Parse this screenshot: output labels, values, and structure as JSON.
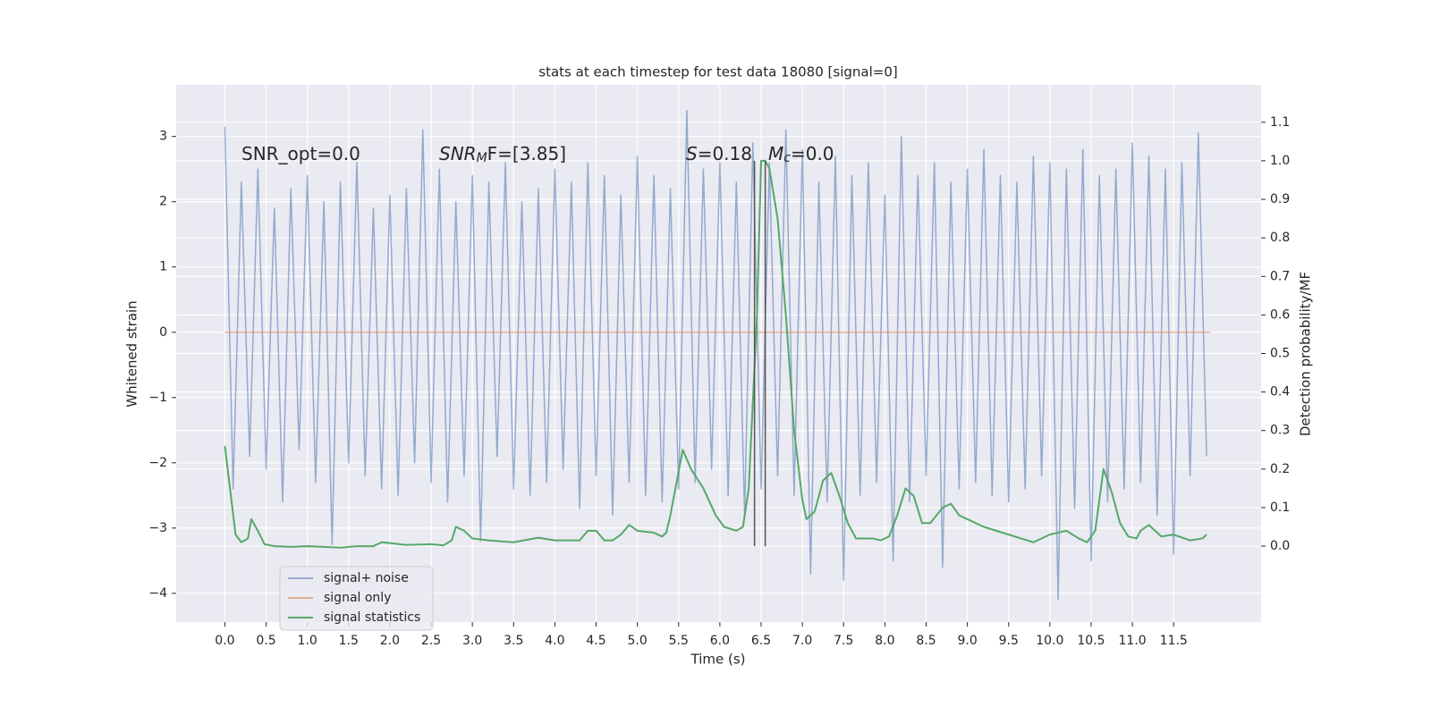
{
  "chart_data": {
    "type": "line",
    "title": "stats at each timestep for test data 18080 [signal=0]",
    "xlabel": "Time (s)",
    "ylabel": "Whitened strain",
    "y2label": "Detection probability/MF",
    "xlim": [
      -0.59,
      12.56
    ],
    "ylim": [
      -4.44,
      3.79
    ],
    "y2lim": [
      -0.197,
      1.197
    ],
    "grid": true,
    "legend_loc": "lower left",
    "xticks": [
      {
        "value": 0,
        "label": "0.0"
      },
      0.5,
      {
        "value": 1,
        "label": "1.0"
      },
      1.5,
      {
        "value": 2,
        "label": "2.0"
      },
      2.5,
      {
        "value": 3,
        "label": "3.0"
      },
      3.5,
      {
        "value": 4,
        "label": "4.0"
      },
      4.5,
      {
        "value": 5,
        "label": "5.0"
      },
      5.5,
      {
        "value": 6,
        "label": "6.0"
      },
      6.5,
      {
        "value": 7,
        "label": "7.0"
      },
      7.5,
      {
        "value": 8,
        "label": "8.0"
      },
      8.5,
      {
        "value": 9,
        "label": "9.0"
      },
      9.5,
      {
        "value": 10,
        "label": "10.0"
      },
      10.5,
      {
        "value": 11,
        "label": "11.0"
      },
      11.5
    ],
    "yticks": [
      {
        "value": -4,
        "label": "−4"
      },
      {
        "value": -3,
        "label": "−3"
      },
      {
        "value": -2,
        "label": "−2"
      },
      {
        "value": -1,
        "label": "−1"
      },
      0,
      1,
      2,
      3
    ],
    "y2ticks": [
      {
        "value": 0,
        "label": "0.0"
      },
      0.1,
      0.2,
      0.3,
      0.4,
      0.5,
      0.6,
      0.7,
      0.8,
      0.9,
      {
        "value": 1,
        "label": "1.0"
      },
      1.1
    ],
    "series": [
      {
        "name": "signal+ noise",
        "color": "#4c72b0",
        "alpha": 0.55,
        "x": [
          0,
          0.1,
          0.2,
          0.3,
          0.4,
          0.5,
          0.6,
          0.7,
          0.8,
          0.9,
          1,
          1.1,
          1.2,
          1.3,
          1.4,
          1.5,
          1.6,
          1.7,
          1.8,
          1.9,
          2,
          2.1,
          2.2,
          2.3,
          2.4,
          2.5,
          2.6,
          2.7,
          2.8,
          2.9,
          3,
          3.1,
          3.2,
          3.3,
          3.4,
          3.5,
          3.6,
          3.7,
          3.8,
          3.9,
          4,
          4.1,
          4.2,
          4.3,
          4.4,
          4.5,
          4.6,
          4.7,
          4.8,
          4.9,
          5,
          5.1,
          5.2,
          5.3,
          5.4,
          5.5,
          5.6,
          5.7,
          5.8,
          5.9,
          6,
          6.1,
          6.2,
          6.3,
          6.4,
          6.5,
          6.6,
          6.7,
          6.8,
          6.9,
          7,
          7.1,
          7.2,
          7.3,
          7.4,
          7.5,
          7.6,
          7.7,
          7.8,
          7.9,
          8,
          8.1,
          8.2,
          8.3,
          8.4,
          8.5,
          8.6,
          8.7,
          8.8,
          8.9,
          9,
          9.1,
          9.2,
          9.3,
          9.4,
          9.5,
          9.6,
          9.7,
          9.8,
          9.9,
          10,
          10.1,
          10.2,
          10.3,
          10.4,
          10.5,
          10.6,
          10.7,
          10.8,
          10.9,
          11,
          11.1,
          11.2,
          11.3,
          11.4,
          11.5,
          11.6,
          11.7,
          11.8,
          11.9
        ],
        "values": [
          3.15,
          -2.4,
          2.3,
          -1.9,
          2.5,
          -2.1,
          1.9,
          -2.6,
          2.2,
          -1.8,
          2.4,
          -2.3,
          2.0,
          -3.25,
          2.3,
          -2.0,
          2.6,
          -2.2,
          1.9,
          -2.4,
          2.1,
          -2.5,
          2.2,
          -2.0,
          3.1,
          -2.3,
          2.5,
          -2.6,
          2.0,
          -2.2,
          2.4,
          -3.2,
          2.3,
          -1.9,
          2.6,
          -2.4,
          2.0,
          -2.5,
          2.2,
          -2.3,
          2.5,
          -2.1,
          2.3,
          -2.7,
          2.6,
          -2.2,
          2.4,
          -2.8,
          2.1,
          -2.3,
          2.7,
          -2.5,
          2.4,
          -2.6,
          2.2,
          -2.4,
          3.4,
          -2.3,
          2.5,
          -2.1,
          2.6,
          -2.5,
          2.3,
          -2.8,
          2.9,
          -2.4,
          2.6,
          -2.2,
          3.1,
          -2.5,
          2.8,
          -3.7,
          2.3,
          -2.6,
          2.7,
          -3.8,
          2.4,
          -2.5,
          2.6,
          -2.3,
          2.1,
          -3.5,
          3.0,
          -2.6,
          2.4,
          -2.2,
          2.6,
          -3.6,
          2.3,
          -2.4,
          2.5,
          -2.3,
          2.8,
          -2.5,
          2.4,
          -2.6,
          2.3,
          -2.4,
          2.7,
          -2.2,
          2.6,
          -4.1,
          2.5,
          -2.7,
          2.8,
          -3.5,
          2.4,
          -2.6,
          2.5,
          -2.4,
          2.9,
          -2.3,
          2.7,
          -2.8,
          2.5,
          -3.4,
          2.6,
          -2.2,
          3.05,
          -1.9
        ]
      },
      {
        "name": "signal only",
        "color": "#dd8452",
        "alpha": 0.6,
        "x": [
          0,
          11.95
        ],
        "values": [
          0,
          0
        ]
      },
      {
        "name": "signal statistics",
        "color": "#55a868",
        "alpha": 1,
        "axis": "y2",
        "x": [
          0,
          0.13,
          0.2,
          0.28,
          0.32,
          0.4,
          0.48,
          0.6,
          0.8,
          1.0,
          1.2,
          1.4,
          1.6,
          1.8,
          1.9,
          2.0,
          2.2,
          2.5,
          2.65,
          2.75,
          2.8,
          2.9,
          3.0,
          3.2,
          3.5,
          3.8,
          4.0,
          4.3,
          4.4,
          4.5,
          4.6,
          4.7,
          4.8,
          4.9,
          5.0,
          5.2,
          5.3,
          5.35,
          5.4,
          5.55,
          5.65,
          5.8,
          5.95,
          6.05,
          6.2,
          6.28,
          6.35,
          6.45,
          6.5,
          6.55,
          6.6,
          6.7,
          6.8,
          6.9,
          7.0,
          7.05,
          7.15,
          7.25,
          7.35,
          7.45,
          7.55,
          7.65,
          7.75,
          7.85,
          7.95,
          8.05,
          8.15,
          8.25,
          8.35,
          8.45,
          8.55,
          8.7,
          8.8,
          8.9,
          9.2,
          9.5,
          9.8,
          10.0,
          10.2,
          10.35,
          10.45,
          10.55,
          10.65,
          10.75,
          10.85,
          10.95,
          11.05,
          11.1,
          11.2,
          11.35,
          11.5,
          11.7,
          11.85,
          11.9
        ],
        "values": [
          0.26,
          0.03,
          0.01,
          0.02,
          0.07,
          0.04,
          0.005,
          0,
          -0.002,
          0,
          -0.002,
          -0.004,
          0,
          0,
          0.01,
          0.008,
          0.003,
          0.005,
          0.002,
          0.015,
          0.05,
          0.04,
          0.02,
          0.015,
          0.01,
          0.022,
          0.015,
          0.015,
          0.04,
          0.04,
          0.015,
          0.015,
          0.03,
          0.055,
          0.04,
          0.035,
          0.025,
          0.035,
          0.08,
          0.25,
          0.2,
          0.15,
          0.08,
          0.05,
          0.04,
          0.05,
          0.15,
          0.6,
          1.0,
          1.0,
          0.98,
          0.85,
          0.6,
          0.3,
          0.12,
          0.07,
          0.09,
          0.17,
          0.19,
          0.13,
          0.06,
          0.02,
          0.02,
          0.02,
          0.015,
          0.025,
          0.08,
          0.15,
          0.13,
          0.06,
          0.06,
          0.1,
          0.11,
          0.08,
          0.05,
          0.03,
          0.01,
          0.03,
          0.04,
          0.02,
          0.01,
          0.04,
          0.2,
          0.14,
          0.06,
          0.025,
          0.02,
          0.04,
          0.055,
          0.025,
          0.03,
          0.015,
          0.02,
          0.03
        ]
      }
    ],
    "vlines": {
      "color": "#555555",
      "axis": "y2",
      "x": [
        6.42,
        6.55
      ],
      "ymin": 0,
      "ymax": 1
    },
    "annotations": [
      [
        {
          "text": "SNR_opt=0.0"
        }
      ],
      [
        {
          "text": "SNR",
          "italic": true
        },
        {
          "text": "M",
          "italic": true,
          "sub": true
        },
        {
          "text": "F=[3.85]"
        }
      ],
      [
        {
          "text": "S",
          "italic": true
        },
        {
          "text": "=0.18"
        },
        {
          "text": "M",
          "italic": true
        },
        {
          "text": "c",
          "italic": true,
          "sub": true
        },
        {
          "text": "=0.0"
        }
      ]
    ]
  }
}
